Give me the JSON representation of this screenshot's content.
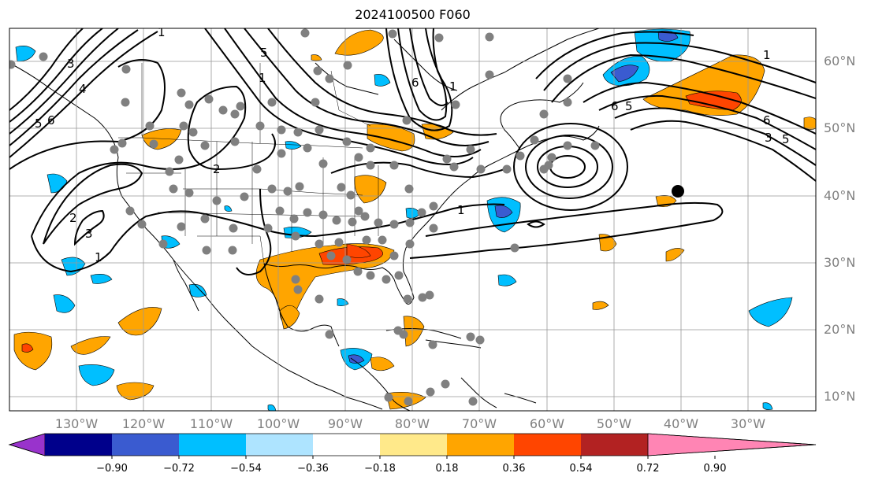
{
  "title": "2024100500 F060",
  "lat_labels": [
    "60°N",
    "50°N",
    "40°N",
    "30°N",
    "20°N",
    "10°N"
  ],
  "lon_labels": [
    "130°W",
    "120°W",
    "110°W",
    "100°W",
    "90°W",
    "80°W",
    "70°W",
    "60°W",
    "50°W",
    "40°W",
    "30°W"
  ],
  "colorbar": {
    "ticks": [
      "−0.90",
      "−0.72",
      "−0.54",
      "−0.36",
      "−0.18",
      "0.18",
      "0.36",
      "0.54",
      "0.72",
      "0.90"
    ],
    "colors": [
      "#9933cc",
      "#00008b",
      "#3a5bd0",
      "#00bfff",
      "#aee4ff",
      "#ffffff",
      "#ffe98a",
      "#ffa500",
      "#ff4500",
      "#b22222",
      "#ff85b4"
    ]
  },
  "contour_labels": {
    "l1": "1",
    "l2": "2",
    "l3": "3",
    "l4": "4",
    "l5": "5",
    "l6": "6",
    "l7": "1",
    "l8": "2",
    "l9": "3",
    "l10": "1",
    "l11": "1",
    "l12": "6",
    "l13": "5",
    "l14": "1",
    "l15": "6",
    "l16": "5",
    "l17": "1",
    "l18": "3",
    "l19": "6",
    "l20": "5"
  },
  "marked_point": "40°N 40°W"
}
